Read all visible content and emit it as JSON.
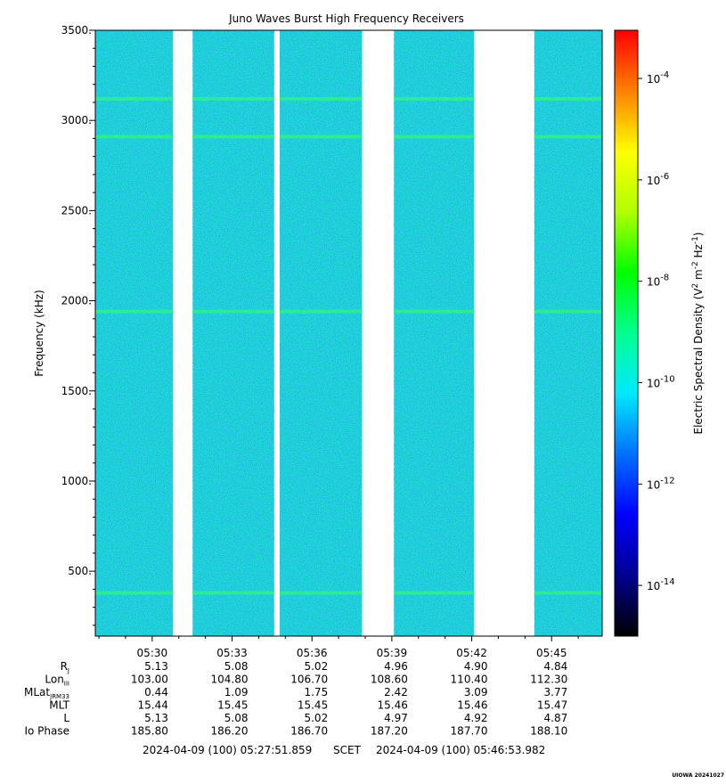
{
  "chart_data": {
    "type": "heatmap",
    "title": "Juno Waves Burst High Frequency Receivers",
    "ylabel": "Frequency (kHz)",
    "ylim": [
      140,
      3500
    ],
    "y_ticks": [
      "3500.",
      "3000.",
      "2500.",
      "2000.",
      "1500.",
      "1000.",
      "500."
    ],
    "y_tick_values": [
      3500,
      3000,
      2500,
      2000,
      1500,
      1000,
      500
    ],
    "x_ticks": [
      "05:30",
      "05:33",
      "05:36",
      "05:39",
      "05:42",
      "05:45"
    ],
    "x_tick_minutes": [
      330,
      333,
      336,
      339,
      342,
      345
    ],
    "x_range_minutes": [
      327.864,
      346.899
    ],
    "data_blocks_minutes": [
      [
        327.864,
        330.78
      ],
      [
        331.52,
        334.58
      ],
      [
        334.79,
        337.88
      ],
      [
        339.08,
        342.09
      ],
      [
        344.35,
        346.899
      ]
    ],
    "emission_lines_khz": [
      3120,
      2910,
      1940,
      380
    ],
    "background_color": "#1fd9d4",
    "colorbar": {
      "label": "Electric Spectral Density (V2 m-2 Hz-1)",
      "ticks": [
        "-4",
        "-6",
        "-8",
        "-10",
        "-12",
        "-14"
      ],
      "tick_exponents": [
        -4,
        -6,
        -8,
        -10,
        -12,
        -14
      ],
      "range_exponents": [
        -15,
        -3.05
      ],
      "colors": [
        "#000000",
        "#00008f",
        "#0000ff",
        "#0070ff",
        "#00e8ff",
        "#00ff90",
        "#00ff00",
        "#b0ff00",
        "#ffff00",
        "#ff8000",
        "#ff0000"
      ]
    },
    "table": {
      "rows": [
        {
          "label": "R",
          "sub": "J",
          "values": [
            "5.13",
            "5.08",
            "5.02",
            "4.96",
            "4.90",
            "4.84"
          ]
        },
        {
          "label": "Lon",
          "sub": "III",
          "values": [
            "103.00",
            "104.80",
            "106.70",
            "108.60",
            "110.40",
            "112.30"
          ]
        },
        {
          "label": "MLat",
          "sub": "JRM33",
          "values": [
            "0.44",
            "1.09",
            "1.75",
            "2.42",
            "3.09",
            "3.77"
          ]
        },
        {
          "label": "MLT",
          "sub": "",
          "values": [
            "15.44",
            "15.45",
            "15.45",
            "15.46",
            "15.46",
            "15.47"
          ]
        },
        {
          "label": "L",
          "sub": "",
          "values": [
            "5.13",
            "5.08",
            "5.02",
            "4.97",
            "4.92",
            "4.87"
          ]
        },
        {
          "label": "Io Phase",
          "sub": "",
          "values": [
            "185.80",
            "186.20",
            "186.70",
            "187.20",
            "187.70",
            "188.10"
          ]
        }
      ]
    },
    "time_range": {
      "start": "2024-04-09 (100) 05:27:51.859",
      "scet": "SCET",
      "end": "2024-04-09 (100) 05:46:53.982"
    },
    "credit": "UIOWA 20241027"
  }
}
